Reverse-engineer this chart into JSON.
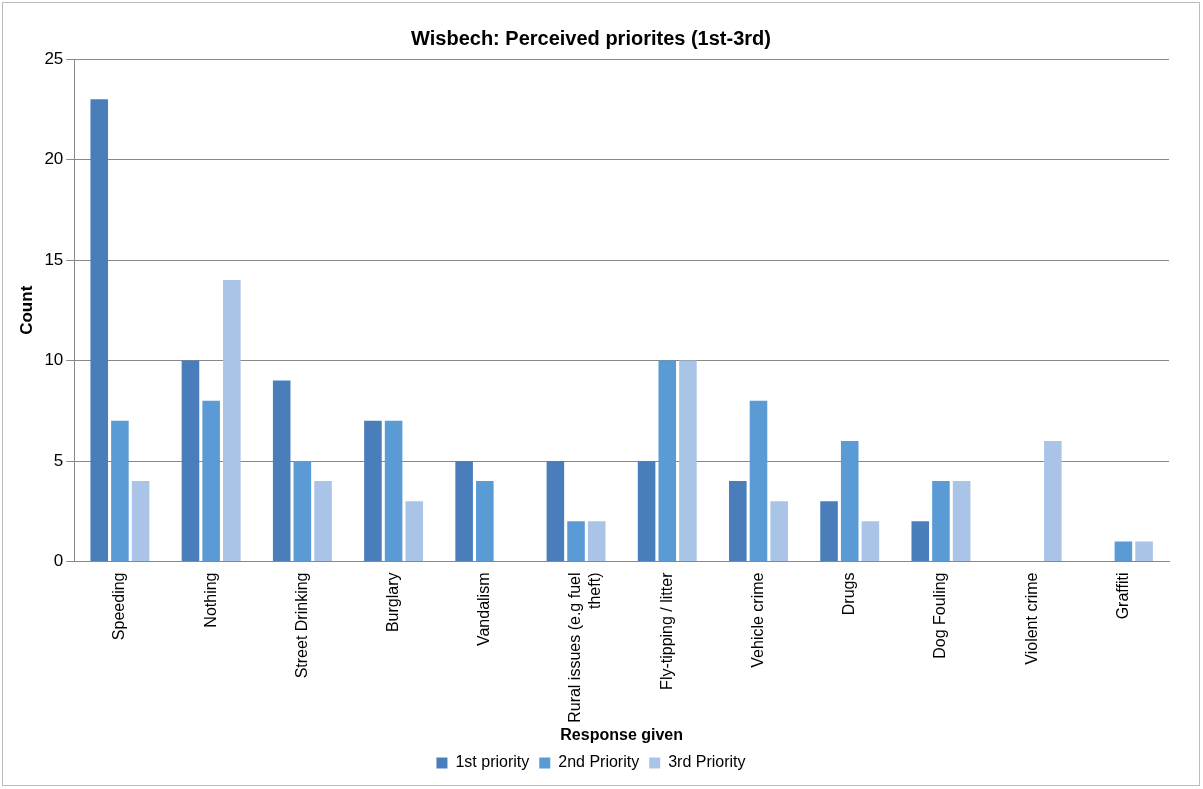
{
  "chart_data": {
    "type": "bar",
    "title": "Wisbech: Perceived priorites (1st-3rd)",
    "xlabel": "Response given",
    "ylabel": "Count",
    "categories": [
      "Speeding",
      "Nothing",
      "Street Drinking",
      "Burglary",
      "Vandalism",
      "Rural issues (e.g fuel theft)",
      "Fly-tipping / litter",
      "Vehicle crime",
      "Drugs",
      "Dog Fouling",
      "Violent crime",
      "Graffiti"
    ],
    "series": [
      {
        "name": "1st priority",
        "color": "#4a7ebb",
        "values": [
          23,
          10,
          9,
          7,
          5,
          5,
          5,
          4,
          3,
          2,
          0,
          0
        ]
      },
      {
        "name": "2nd Priority",
        "color": "#5b9bd5",
        "values": [
          7,
          8,
          5,
          7,
          4,
          2,
          10,
          8,
          6,
          4,
          0,
          1
        ]
      },
      {
        "name": "3rd Priority",
        "color": "#a9c4e6",
        "values": [
          4,
          14,
          4,
          3,
          0,
          2,
          10,
          3,
          2,
          4,
          6,
          1
        ]
      }
    ],
    "ylim": [
      0,
      25
    ],
    "yticks": [
      0,
      5,
      10,
      15,
      20,
      25
    ],
    "grid": "y",
    "legend": "bottom"
  }
}
